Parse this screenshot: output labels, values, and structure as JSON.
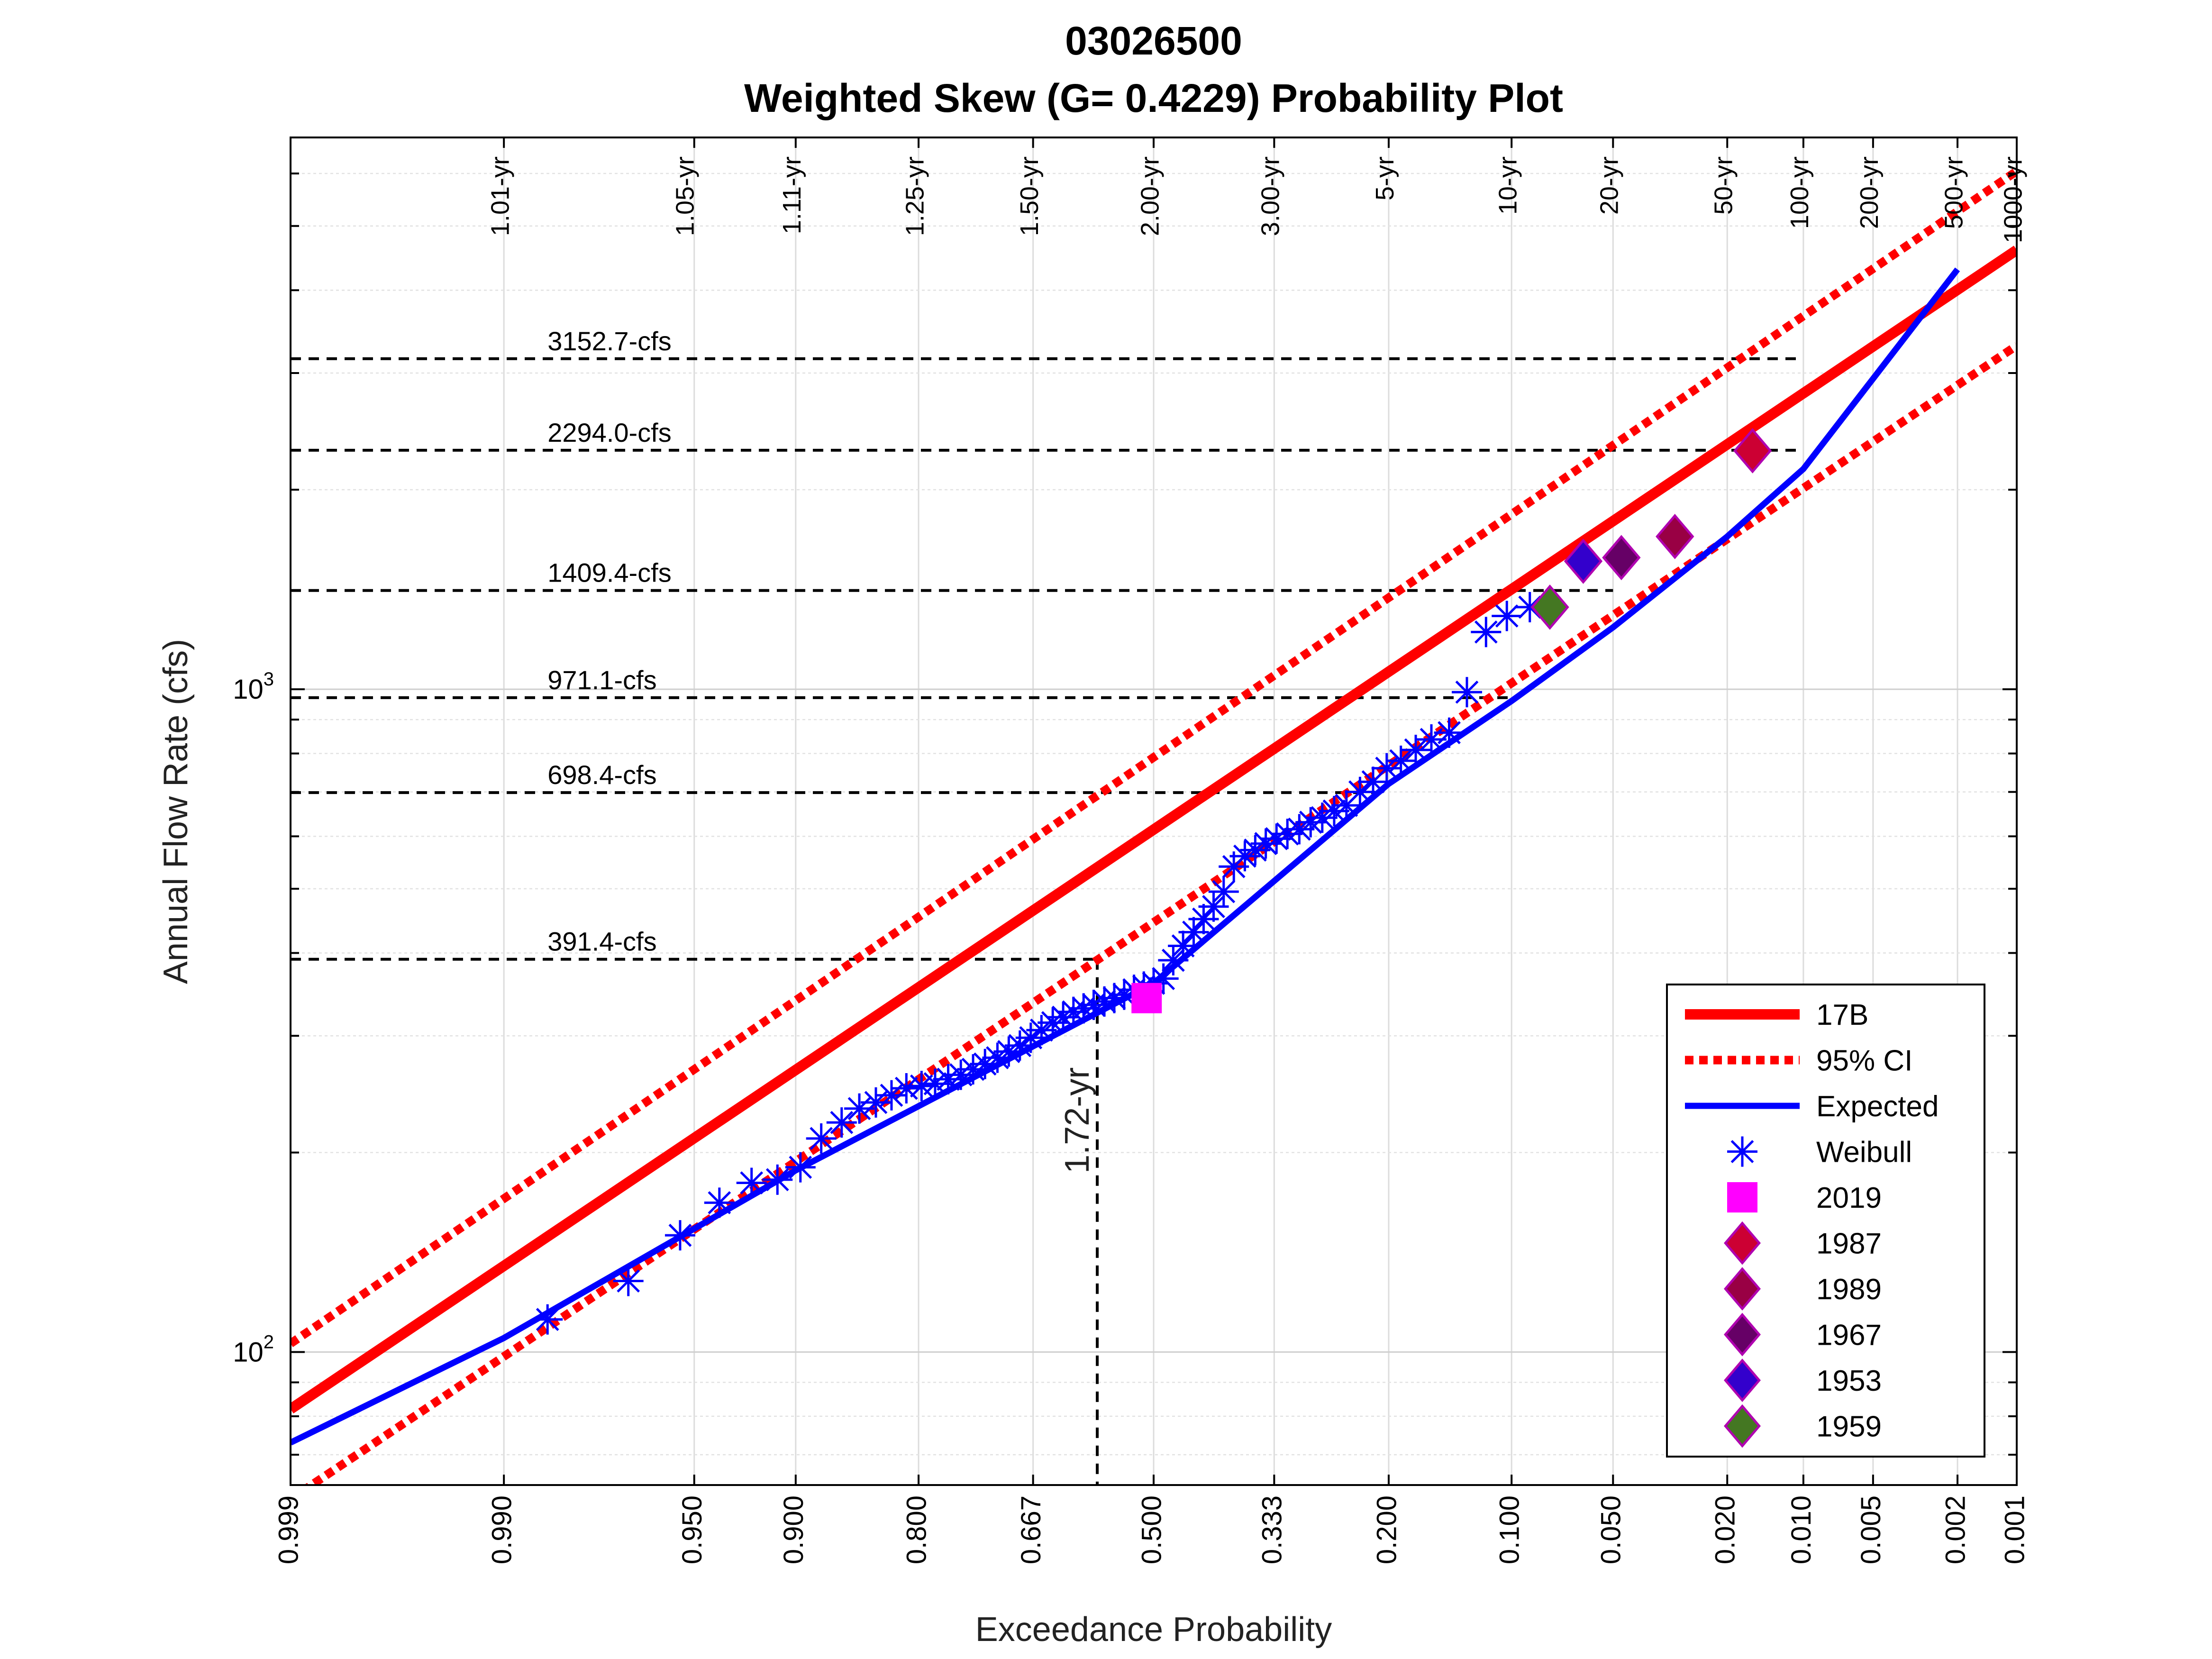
{
  "chart_data": {
    "type": "scatter",
    "title": "03026500",
    "subtitle": "Weighted Skew (G= 0.4229) Probability Plot",
    "xlabel": "Exceedance Probability",
    "ylabel": "Annual Flow Rate (cfs)",
    "x_scale": "normal-probability",
    "y_scale": "log",
    "xlim": [
      0.999,
      0.001
    ],
    "ylim": [
      63,
      6800
    ],
    "grid": true,
    "legend_position": "bottom-right",
    "x_ticks": [
      "0.999",
      "0.990",
      "0.950",
      "0.900",
      "0.800",
      "0.667",
      "0.500",
      "0.333",
      "0.200",
      "0.100",
      "0.050",
      "0.020",
      "0.010",
      "0.005",
      "0.002",
      "0.001"
    ],
    "x_tick_values": [
      0.999,
      0.99,
      0.95,
      0.9,
      0.8,
      0.667,
      0.5,
      0.333,
      0.2,
      0.1,
      0.05,
      0.02,
      0.01,
      0.005,
      0.002,
      0.001
    ],
    "y_ticks": [
      {
        "value": 100,
        "base": "10",
        "exp": "2"
      },
      {
        "value": 1000,
        "base": "10",
        "exp": "3"
      }
    ],
    "return_periods": [
      {
        "label": "1.01-yr",
        "p": 0.99
      },
      {
        "label": "1.05-yr",
        "p": 0.952
      },
      {
        "label": "1.11-yr",
        "p": 0.9
      },
      {
        "label": "1.25-yr",
        "p": 0.8
      },
      {
        "label": "1.50-yr",
        "p": 0.667
      },
      {
        "label": "2.00-yr",
        "p": 0.5
      },
      {
        "label": "3.00-yr",
        "p": 0.333
      },
      {
        "label": "5-yr",
        "p": 0.2
      },
      {
        "label": "10-yr",
        "p": 0.1
      },
      {
        "label": "20-yr",
        "p": 0.05
      },
      {
        "label": "50-yr",
        "p": 0.02
      },
      {
        "label": "100-yr",
        "p": 0.01
      },
      {
        "label": "200-yr",
        "p": 0.005
      },
      {
        "label": "500-yr",
        "p": 0.002
      },
      {
        "label": "1000-yr",
        "p": 0.001
      }
    ],
    "flow_lines": [
      {
        "label": "3152.7-cfs",
        "value": 3152.7,
        "p_end": 0.01
      },
      {
        "label": "2294.0-cfs",
        "value": 2294.0,
        "p_end": 0.01
      },
      {
        "label": "1409.4-cfs",
        "value": 1409.4,
        "p_end": 0.05
      },
      {
        "label": "971.1-cfs",
        "value": 971.1,
        "p_end": 0.1
      },
      {
        "label": "698.4-cfs",
        "value": 698.4,
        "p_end": 0.2
      },
      {
        "label": "391.4-cfs",
        "value": 391.4,
        "p_end": 0.58
      }
    ],
    "annotation": {
      "label": "1.72-yr",
      "p": 0.58,
      "value": 391.4
    },
    "series": [
      {
        "name": "17B",
        "kind": "line",
        "color": "#ff0000",
        "x": [
          0.999,
          0.001
        ],
        "y": [
          82,
          4600
        ]
      },
      {
        "name": "95% CI",
        "kind": "dotted",
        "color": "#ff0000",
        "x": [
          0.999,
          0.001
        ],
        "y": [
          103,
          6050
        ]
      },
      {
        "kind": "dotted",
        "color": "#ff0000",
        "x": [
          0.999,
          0.001
        ],
        "y": [
          60,
          3300
        ]
      },
      {
        "name": "Expected",
        "kind": "line",
        "color": "#0000ff",
        "x": [
          0.999,
          0.99,
          0.9,
          0.5,
          0.2,
          0.1,
          0.05,
          0.02,
          0.01,
          0.002
        ],
        "y": [
          73,
          105,
          188,
          360,
          720,
          960,
          1240,
          1700,
          2150,
          4300
        ]
      },
      {
        "name": "Weibull",
        "kind": "marker",
        "marker": "asterisk",
        "color": "#0000ff",
        "x": [
          0.985,
          0.97,
          0.955,
          0.94,
          0.925,
          0.911,
          0.897,
          0.883,
          0.868,
          0.854,
          0.84,
          0.826,
          0.812,
          0.797,
          0.783,
          0.769,
          0.755,
          0.741,
          0.727,
          0.712,
          0.698,
          0.684,
          0.67,
          0.656,
          0.641,
          0.627,
          0.613,
          0.599,
          0.585,
          0.57,
          0.556,
          0.542,
          0.528,
          0.514,
          0.5,
          0.486,
          0.472,
          0.458,
          0.443,
          0.429,
          0.415,
          0.401,
          0.387,
          0.372,
          0.358,
          0.344,
          0.33,
          0.316,
          0.301,
          0.287,
          0.273,
          0.259,
          0.245,
          0.23,
          0.216,
          0.202,
          0.188,
          0.174,
          0.16,
          0.145,
          0.131,
          0.117,
          0.103,
          0.089
        ],
        "y": [
          112,
          128,
          150,
          168,
          180,
          182,
          190,
          210,
          222,
          233,
          238,
          244,
          250,
          252,
          254,
          258,
          262,
          267,
          272,
          278,
          284,
          290,
          298,
          306,
          314,
          320,
          326,
          330,
          334,
          338,
          342,
          346,
          352,
          356,
          360,
          366,
          390,
          410,
          430,
          450,
          470,
          495,
          540,
          560,
          572,
          585,
          595,
          605,
          615,
          630,
          640,
          655,
          668,
          700,
          725,
          760,
          780,
          810,
          840,
          860,
          990,
          1220,
          1290,
          1330
        ]
      },
      {
        "name": "2019",
        "kind": "marker",
        "marker": "square",
        "color": "#ff00ff",
        "x": [
          0.51
        ],
        "y": [
          342
        ]
      },
      {
        "name": "1987",
        "kind": "marker",
        "marker": "diamond",
        "color": "#cc0033",
        "x": [
          0.016
        ],
        "y": [
          2290
        ]
      },
      {
        "name": "1989",
        "kind": "marker",
        "marker": "diamond",
        "color": "#990044",
        "x": [
          0.031
        ],
        "y": [
          1700
        ]
      },
      {
        "name": "1967",
        "kind": "marker",
        "marker": "diamond",
        "color": "#660066",
        "x": [
          0.047
        ],
        "y": [
          1580
        ]
      },
      {
        "name": "1953",
        "kind": "marker",
        "marker": "diamond",
        "color": "#3300cc",
        "x": [
          0.062
        ],
        "y": [
          1560
        ]
      },
      {
        "name": "1959",
        "kind": "marker",
        "marker": "diamond",
        "color": "#447722",
        "x": [
          0.078
        ],
        "y": [
          1330
        ]
      }
    ]
  }
}
